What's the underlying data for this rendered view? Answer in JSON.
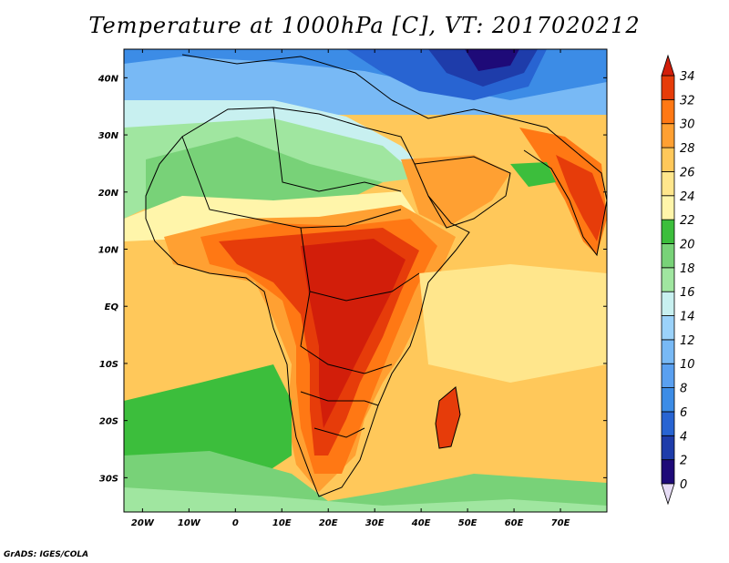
{
  "title": "Temperature at 1000hPa [C], VT: 2017020212",
  "footer": "GrADS: IGES/COLA",
  "map": {
    "lon_range": [
      -24,
      80
    ],
    "lat_range": [
      -36,
      45
    ],
    "x_ticks": [
      {
        "lon": -20,
        "label": "20W"
      },
      {
        "lon": -10,
        "label": "10W"
      },
      {
        "lon": 0,
        "label": "0"
      },
      {
        "lon": 10,
        "label": "10E"
      },
      {
        "lon": 20,
        "label": "20E"
      },
      {
        "lon": 30,
        "label": "30E"
      },
      {
        "lon": 40,
        "label": "40E"
      },
      {
        "lon": 50,
        "label": "50E"
      },
      {
        "lon": 60,
        "label": "60E"
      },
      {
        "lon": 70,
        "label": "70E"
      }
    ],
    "y_ticks": [
      {
        "lat": 40,
        "label": "40N"
      },
      {
        "lat": 30,
        "label": "30N"
      },
      {
        "lat": 20,
        "label": "20N"
      },
      {
        "lat": 10,
        "label": "10N"
      },
      {
        "lat": 0,
        "label": "EQ"
      },
      {
        "lat": -10,
        "label": "10S"
      },
      {
        "lat": -20,
        "label": "20S"
      },
      {
        "lat": -30,
        "label": "30S"
      }
    ]
  },
  "colorbar": {
    "levels": [
      "0",
      "2",
      "4",
      "6",
      "8",
      "10",
      "12",
      "14",
      "16",
      "18",
      "20",
      "22",
      "24",
      "26",
      "28",
      "30",
      "32",
      "34"
    ],
    "colors": [
      "#e6dcf5",
      "#1e0a78",
      "#1e3caa",
      "#2864d2",
      "#3c8ce6",
      "#5aa0f0",
      "#78b9f5",
      "#9bd2fa",
      "#c8f0f0",
      "#a0e6a0",
      "#78d278",
      "#3cbe3c",
      "#fff5aa",
      "#ffe68c",
      "#ffc85a",
      "#ffa032",
      "#ff7814",
      "#e63c0a",
      "#d21e0a"
    ]
  }
}
